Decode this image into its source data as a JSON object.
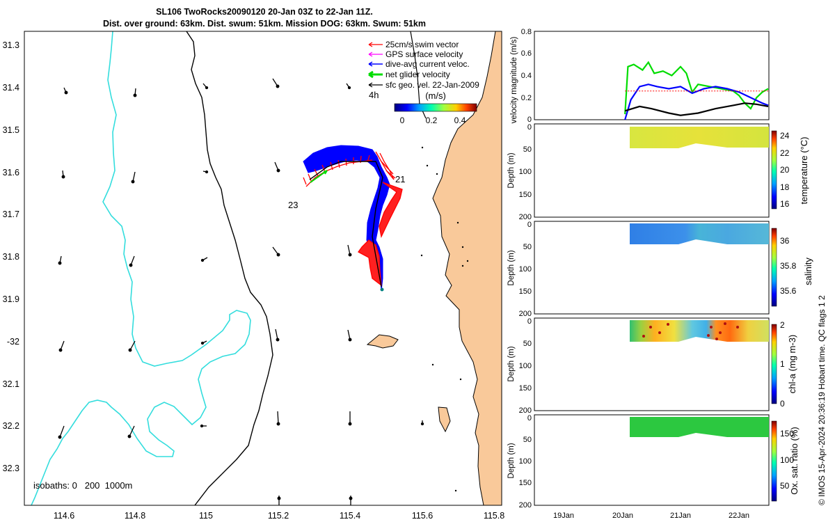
{
  "title_line1": "SL106 TwoRocks20090120 20-Jan 03Z to 22-Jan 11Z.",
  "title_line2": "Dist. over ground: 63km. Dist. swum: 51km. Mission DOG: 63km. Swum: 51km",
  "colors": {
    "land": "#f9c99a",
    "coast": "#000000",
    "isobath200": "#000000",
    "isobath1000": "#33dddd",
    "swim_vector": "#ff0000",
    "gps_velocity": "#ff00ff",
    "dive_avg": "#0000ff",
    "net_glider": "#00dd00",
    "sfc_geo": "#000000",
    "vel_mean_line": "#ff0000"
  },
  "map": {
    "lon_ticks": [
      "114.6",
      "114.8",
      "115",
      "115.2",
      "115.4",
      "115.6",
      "115.8"
    ],
    "lat_ticks": [
      "31.3",
      "31.4",
      "31.5",
      "31.6",
      "31.7",
      "31.8",
      "31.9",
      "-32",
      "32.1",
      "32.2",
      "32.3"
    ],
    "label_23": "23",
    "label_21": "21",
    "label_4h": "4h",
    "isobaths_label": "isobaths: 0   200  1000m",
    "legend": {
      "swim": "25cm/s swim vector",
      "gps": "GPS surface velocity",
      "dive": "dive-avg current veloc.",
      "net": "net glider velocity",
      "sfc": "sfc geo. vel. 22-Jan-2009"
    },
    "speed_bar": {
      "label": "(m/s)",
      "ticks": [
        "0",
        "0.2",
        "0.4"
      ]
    }
  },
  "side_panels": {
    "velocity": {
      "ylabel": "velocity magnitude (m/s)",
      "yticks": [
        "0",
        "0.2",
        "0.4",
        "0.6",
        "0.8"
      ]
    },
    "depth_ylabel": "Depth (m)",
    "depth_ticks": [
      "0",
      "50",
      "100",
      "150",
      "200"
    ],
    "temperature": {
      "label": "temperature (°C)",
      "ticks": [
        "16",
        "18",
        "20",
        "22",
        "24"
      ]
    },
    "salinity": {
      "label": "salinity",
      "ticks": [
        "35.6",
        "35.8",
        "36"
      ]
    },
    "chla": {
      "label": "chl-a (mg m-3)",
      "ticks": [
        "0",
        "1",
        "2"
      ]
    },
    "oxygen": {
      "label": "Ox. sat. ratio (%)",
      "ticks": [
        "50",
        "100",
        "150"
      ]
    },
    "xticks": [
      "19Jan",
      "20Jan",
      "21Jan",
      "22Jan"
    ],
    "footer": "© IMOS 15-Apr-2024 20:36:19 Hobart time. QC flags 1  2"
  },
  "chart_data": [
    {
      "type": "line",
      "title": "",
      "ylabel": "velocity magnitude (m/s)",
      "ylim": [
        0,
        0.8
      ],
      "xlabel": "",
      "x_ticks": [
        "19Jan",
        "20Jan",
        "21Jan",
        "22Jan"
      ],
      "series": [
        {
          "name": "net glider velocity",
          "color": "#00dd00",
          "x": [
            20.05,
            20.1,
            20.2,
            20.35,
            20.45,
            20.55,
            20.7,
            20.85,
            21.0,
            21.1,
            21.2,
            21.3,
            21.5,
            21.7,
            21.9,
            22.0,
            22.1,
            22.2,
            22.3,
            22.4,
            22.5
          ],
          "values": [
            0.05,
            0.48,
            0.5,
            0.45,
            0.52,
            0.42,
            0.44,
            0.4,
            0.48,
            0.42,
            0.25,
            0.32,
            0.3,
            0.28,
            0.26,
            0.22,
            0.15,
            0.1,
            0.2,
            0.25,
            0.28
          ]
        },
        {
          "name": "dive-avg current veloc.",
          "color": "#0000ff",
          "x": [
            20.05,
            20.15,
            20.3,
            20.45,
            20.6,
            20.8,
            21.0,
            21.2,
            21.4,
            21.6,
            21.8,
            22.0,
            22.2,
            22.4,
            22.5
          ],
          "values": [
            0.0,
            0.18,
            0.3,
            0.32,
            0.3,
            0.28,
            0.3,
            0.24,
            0.28,
            0.3,
            0.28,
            0.25,
            0.2,
            0.15,
            0.13
          ]
        },
        {
          "name": "sfc geo. vel.",
          "color": "#000000",
          "x": [
            20.05,
            20.3,
            20.5,
            20.8,
            21.0,
            21.3,
            21.6,
            21.9,
            22.1,
            22.3,
            22.5
          ],
          "values": [
            0.08,
            0.12,
            0.1,
            0.06,
            0.04,
            0.06,
            0.1,
            0.13,
            0.15,
            0.14,
            0.12
          ]
        },
        {
          "name": "mean",
          "color": "#ff0000",
          "x": [
            20.05,
            22.5
          ],
          "values": [
            0.26,
            0.26
          ]
        }
      ]
    }
  ]
}
